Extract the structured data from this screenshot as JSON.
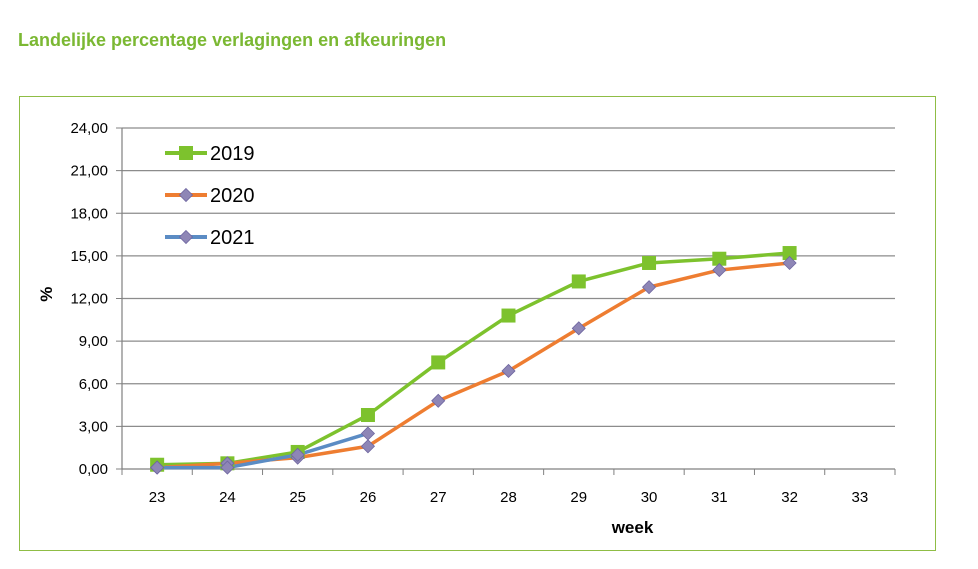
{
  "page": {
    "title": "Landelijke percentage verlagingen en afkeuringen"
  },
  "chart_data": {
    "type": "line",
    "title": "",
    "xlabel": "week",
    "ylabel": "%",
    "x": [
      23,
      24,
      25,
      26,
      27,
      28,
      29,
      30,
      31,
      32,
      33
    ],
    "x_tick_labels": [
      "23",
      "24",
      "25",
      "26",
      "27",
      "28",
      "29",
      "30",
      "31",
      "32",
      "33"
    ],
    "ylim": [
      0,
      24
    ],
    "y_tick_labels": [
      "0,00",
      "3,00",
      "6,00",
      "9,00",
      "12,00",
      "15,00",
      "18,00",
      "21,00",
      "24,00"
    ],
    "grid": "horizontal",
    "legend_position": "top-left",
    "series": [
      {
        "name": "2019",
        "color": "#7dc22d",
        "marker": "square",
        "x": [
          23,
          24,
          25,
          26,
          27,
          28,
          29,
          30,
          31,
          32
        ],
        "values": [
          0.3,
          0.4,
          1.2,
          3.8,
          7.5,
          10.8,
          13.2,
          14.5,
          14.8,
          15.2
        ]
      },
      {
        "name": "2020",
        "color": "#ee7d31",
        "marker": "diamond",
        "x": [
          23,
          24,
          25,
          26,
          27,
          28,
          29,
          30,
          31,
          32
        ],
        "values": [
          0.1,
          0.4,
          0.8,
          1.6,
          4.8,
          6.9,
          9.9,
          12.8,
          14.0,
          14.5
        ]
      },
      {
        "name": "2021",
        "color": "#5b8cc4",
        "marker": "diamond",
        "x": [
          23,
          24,
          25,
          26
        ],
        "values": [
          0.1,
          0.1,
          1.0,
          2.5
        ]
      }
    ]
  }
}
